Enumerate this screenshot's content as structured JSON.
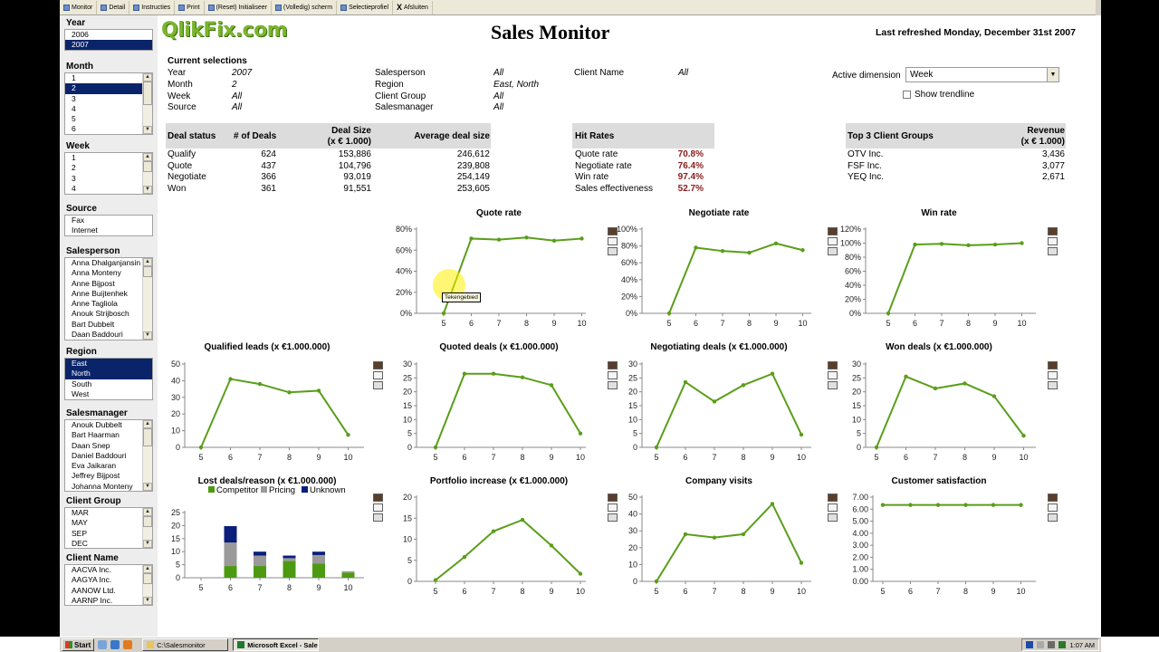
{
  "toolbar": {
    "items": [
      {
        "label": "Monitor",
        "icon": "monitor-icon"
      },
      {
        "label": "Detail",
        "icon": "detail-icon"
      },
      {
        "label": "Instructies",
        "icon": "instructions-icon"
      },
      {
        "label": "Print",
        "icon": "print-icon"
      },
      {
        "label": "(Reset) Initialiseer",
        "icon": "reset-icon"
      },
      {
        "label": "(Volledig) scherm",
        "icon": "fullscreen-icon"
      },
      {
        "label": "Selectieprofiel",
        "icon": "selection-profile-icon"
      },
      {
        "label": "Afsluiten",
        "icon": "close-icon",
        "glyph": "X"
      }
    ]
  },
  "header": {
    "logo": "QlikFix.com",
    "title": "Sales Monitor",
    "refreshed": "Last refreshed Monday, December 31st 2007"
  },
  "sidebar": {
    "year": {
      "title": "Year",
      "items": [
        "2006",
        "2007"
      ],
      "selected": [
        "2007"
      ]
    },
    "month": {
      "title": "Month",
      "items": [
        "1",
        "2",
        "3",
        "4",
        "5",
        "6"
      ],
      "selected": [
        "2"
      ]
    },
    "week": {
      "title": "Week",
      "items": [
        "1",
        "2",
        "3",
        "4"
      ],
      "selected": []
    },
    "source": {
      "title": "Source",
      "items": [
        "Fax",
        "Internet"
      ],
      "selected": []
    },
    "salesperson": {
      "title": "Salesperson",
      "items": [
        "Anna Dhalganjansin",
        "Anna Monteny",
        "Anne Bijpost",
        "Anne Buijtenhek",
        "Anne Tagliola",
        "Anouk Strijbosch",
        "Bart Dubbelt",
        "Daan Baddouri"
      ],
      "selected": []
    },
    "region": {
      "title": "Region",
      "items": [
        "East",
        "North",
        "South",
        "West"
      ],
      "selected": [
        "East",
        "North"
      ]
    },
    "salesmanager": {
      "title": "Salesmanager",
      "items": [
        "Anouk Dubbelt",
        "Bart Haarman",
        "Daan Snep",
        "Daniel Baddouri",
        "Eva Jaikaran",
        "Jeffrey Bijpost",
        "Johanna Monteny"
      ],
      "selected": []
    },
    "clientgroup": {
      "title": "Client Group",
      "items": [
        "MAR",
        "MAY",
        "SEP",
        "DEC"
      ],
      "selected": []
    },
    "clientname": {
      "title": "Client Name",
      "items": [
        "AACVA Inc.",
        "AAGYA Inc.",
        "AANOW Ltd.",
        "AARNP Inc."
      ],
      "selected": []
    }
  },
  "current_selections": {
    "title": "Current selections",
    "rows": [
      {
        "label": "Year",
        "value": "2007"
      },
      {
        "label": "Month",
        "value": "2"
      },
      {
        "label": "Week",
        "value": "All"
      },
      {
        "label": "Source",
        "value": "All"
      },
      {
        "label": "Salesperson",
        "value": "All"
      },
      {
        "label": "Region",
        "value": "East, North"
      },
      {
        "label": "Client Group",
        "value": "All"
      },
      {
        "label": "Salesmanager",
        "value": "All"
      },
      {
        "label": "Client Name",
        "value": "All"
      }
    ]
  },
  "active_dimension": {
    "label": "Active dimension",
    "value": "Week"
  },
  "show_trendline": {
    "label": "Show trendline",
    "checked": false
  },
  "deal_table": {
    "headers": [
      "Deal status",
      "# of Deals",
      "Deal Size",
      "(x € 1.000)",
      "Average deal size"
    ],
    "rows": [
      [
        "Qualify",
        "624",
        "153,886",
        "246,612"
      ],
      [
        "Quote",
        "437",
        "104,796",
        "239,808"
      ],
      [
        "Negotiate",
        "366",
        "93,019",
        "254,149"
      ],
      [
        "Won",
        "361",
        "91,551",
        "253,605"
      ]
    ]
  },
  "hit_rates": {
    "title": "Hit Rates",
    "rows": [
      [
        "Quote rate",
        "70.8%"
      ],
      [
        "Negotiate rate",
        "76.4%"
      ],
      [
        "Win rate",
        "97.4%"
      ],
      [
        "Sales effectiveness",
        "52.7%"
      ]
    ],
    "value_color": "#8b1a1a"
  },
  "top3": {
    "title": "Top 3 Client Groups",
    "revenue_header": "Revenue",
    "revenue_unit": "(x € 1.000)",
    "rows": [
      [
        "OTV Inc.",
        "3,436"
      ],
      [
        "FSF Inc.",
        "3,077"
      ],
      [
        "YEQ Inc.",
        "2,671"
      ]
    ]
  },
  "tooltip": "Tekengebied",
  "colors": {
    "line": "#5a9e1a",
    "competitor": "#4c9a12",
    "pricing": "#9a9a9a",
    "unknown": "#0a1e7a",
    "selection": "#0a246a"
  },
  "chart_data": [
    {
      "type": "line",
      "title": "Quote rate",
      "x": [
        "5",
        "6",
        "7",
        "8",
        "9",
        "10"
      ],
      "values": [
        0,
        71,
        70,
        72,
        69,
        71
      ],
      "yticks": [
        "0%",
        "20%",
        "40%",
        "60%",
        "80%"
      ],
      "ylim": [
        0,
        80
      ]
    },
    {
      "type": "line",
      "title": "Negotiate rate",
      "x": [
        "5",
        "6",
        "7",
        "8",
        "9",
        "10"
      ],
      "values": [
        0,
        78,
        74,
        72,
        83,
        75
      ],
      "yticks": [
        "0%",
        "20%",
        "40%",
        "60%",
        "80%",
        "100%"
      ],
      "ylim": [
        0,
        100
      ]
    },
    {
      "type": "line",
      "title": "Win rate",
      "x": [
        "5",
        "6",
        "7",
        "8",
        "9",
        "10"
      ],
      "values": [
        0,
        98,
        99,
        97,
        98,
        100
      ],
      "yticks": [
        "0%",
        "20%",
        "40%",
        "60%",
        "80%",
        "100%",
        "120%"
      ],
      "ylim": [
        0,
        120
      ]
    },
    {
      "type": "line",
      "title": "Qualified leads (x €1.000.000)",
      "x": [
        "5",
        "6",
        "7",
        "8",
        "9",
        "10"
      ],
      "values": [
        0,
        41,
        38,
        33,
        34,
        7.5
      ],
      "yticks": [
        "0",
        "10",
        "20",
        "30",
        "40",
        "50"
      ],
      "ylim": [
        0,
        50
      ]
    },
    {
      "type": "line",
      "title": "Quoted deals (x €1.000.000)",
      "x": [
        "5",
        "6",
        "7",
        "8",
        "9",
        "10"
      ],
      "values": [
        0,
        26.5,
        26.5,
        25.2,
        22.4,
        5
      ],
      "yticks": [
        "0",
        "5",
        "10",
        "15",
        "20",
        "25",
        "30"
      ],
      "ylim": [
        0,
        30
      ]
    },
    {
      "type": "line",
      "title": "Negotiating deals (x €1.000.000)",
      "x": [
        "5",
        "6",
        "7",
        "8",
        "9",
        "10"
      ],
      "values": [
        0,
        23.5,
        16.5,
        22.4,
        26.5,
        4.6
      ],
      "yticks": [
        "0",
        "5",
        "10",
        "15",
        "20",
        "25",
        "30"
      ],
      "ylim": [
        0,
        30
      ]
    },
    {
      "type": "line",
      "title": "Won deals (x €1.000.000)",
      "x": [
        "5",
        "6",
        "7",
        "8",
        "9",
        "10"
      ],
      "values": [
        0,
        25.5,
        21.2,
        23,
        18.4,
        4.2
      ],
      "yticks": [
        "0",
        "5",
        "10",
        "15",
        "20",
        "25",
        "30"
      ],
      "ylim": [
        0,
        30
      ]
    },
    {
      "type": "bar",
      "title": "Lost deals/reason (x €1.000.000)",
      "categories": [
        "5",
        "6",
        "7",
        "8",
        "9",
        "10"
      ],
      "series": [
        {
          "name": "Competitor",
          "values": [
            0,
            4.5,
            4.5,
            6.5,
            5.5,
            2
          ]
        },
        {
          "name": "Pricing",
          "values": [
            0,
            9,
            4,
            1,
            3.2,
            0.5
          ]
        },
        {
          "name": "Unknown",
          "values": [
            0,
            6.3,
            1.5,
            1,
            1.3,
            0
          ]
        }
      ],
      "yticks": [
        "0",
        "5",
        "10",
        "15",
        "20",
        "25"
      ],
      "ylim": [
        0,
        25
      ]
    },
    {
      "type": "line",
      "title": "Portfolio increase (x €1.000.000)",
      "x": [
        "5",
        "6",
        "7",
        "8",
        "9",
        "10"
      ],
      "values": [
        0.3,
        5.8,
        11.9,
        14.6,
        8.5,
        1.8
      ],
      "yticks": [
        "0",
        "5",
        "10",
        "15",
        "20"
      ],
      "ylim": [
        0,
        20
      ]
    },
    {
      "type": "line",
      "title": "Company visits",
      "x": [
        "5",
        "6",
        "7",
        "8",
        "9",
        "10"
      ],
      "values": [
        0,
        28,
        26,
        28,
        46,
        11
      ],
      "yticks": [
        "0",
        "10",
        "20",
        "30",
        "40",
        "50"
      ],
      "ylim": [
        0,
        50
      ]
    },
    {
      "type": "line",
      "title": "Customer satisfaction",
      "x": [
        "5",
        "6",
        "7",
        "8",
        "9",
        "10"
      ],
      "values": [
        6.35,
        6.35,
        6.35,
        6.35,
        6.35,
        6.35
      ],
      "yticks": [
        "0.00",
        "1.00",
        "2.00",
        "3.00",
        "4.00",
        "5.00",
        "6.00",
        "7.00"
      ],
      "ylim": [
        0,
        7
      ]
    }
  ],
  "taskbar": {
    "start": "Start",
    "tasks": [
      {
        "label": "C:\\Salesmonitor",
        "active": false
      },
      {
        "label": "Microsoft Excel - Sale...",
        "active": true
      }
    ],
    "clock": "1:07 AM"
  }
}
